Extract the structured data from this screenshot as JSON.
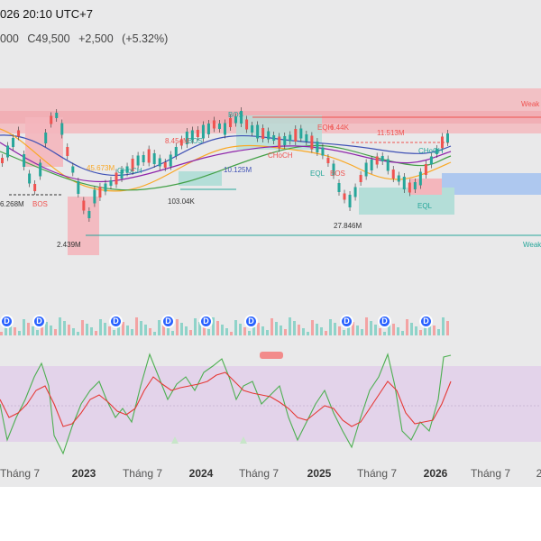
{
  "header": {
    "datetime": "026 20:10 UTC+7",
    "open_fragment": "000",
    "price": "C49,500",
    "change": "+2,500",
    "change_pct": "(+5.32%)"
  },
  "colors": {
    "bull": "#26a69a",
    "bear": "#ef5350",
    "supply_zone": "#f4b6bc",
    "demand_zone": "#b4ded8",
    "blue_zone": "#aec8ef",
    "rsi_band": "#e3d3ea",
    "rsi_line": "#4caf50",
    "rsi_signal": "#e53935",
    "badge": "#2962ff"
  },
  "annotations": {
    "weak_high": "Weak H",
    "weak_low": "Weak",
    "bos_1": "BOS",
    "bos_2": "BOS",
    "bos_3": "BOS",
    "bos_4": "BOS",
    "choch_1": "CHoCH",
    "choch_2": "CHoCH",
    "choch_3": "CHoCH",
    "eql_1": "EQL",
    "eql_2": "EQL",
    "eqh_1": "EQH",
    "vol_1": "6.268M",
    "vol_2": "2.439M",
    "vol_3": "45.673M",
    "vol_4": "8.454M",
    "vol_5": "103.04K",
    "vol_6": "10.125M",
    "vol_7": "6.44K",
    "vol_8": "11.513M",
    "vol_9": "27.846M"
  },
  "dividend_badges": [
    "D",
    "D",
    "D",
    "D",
    "D",
    "D",
    "D",
    "D",
    "D"
  ],
  "time_axis": {
    "labels": [
      "Tháng 7",
      "2023",
      "Tháng 7",
      "2024",
      "Tháng 7",
      "2025",
      "Tháng 7",
      "2026",
      "Tháng 7",
      "2"
    ]
  }
}
